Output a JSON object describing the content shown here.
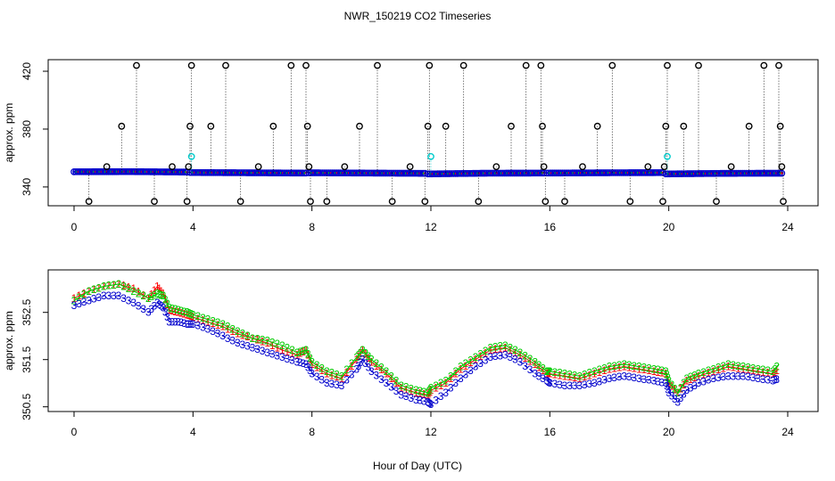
{
  "title": "NWR_150219  CO2 Timeseries",
  "xlabel": "Hour of Day (UTC)",
  "colors": {
    "series1": "#ff0000",
    "series2": "#00cc00",
    "series3": "#0000cc",
    "flagged": "#00cccc",
    "outlier": "#000000"
  },
  "chart_data": [
    {
      "type": "scatter",
      "name": "top-panel",
      "ylabel": "approx. ppm",
      "xlim": [
        0,
        24
      ],
      "ylim": [
        327,
        428
      ],
      "xticks": [
        "0",
        "4",
        "8",
        "12",
        "16",
        "20",
        "24"
      ],
      "yticks": [
        "340",
        "380",
        "420"
      ],
      "baseline_segments": [
        {
          "x": [
            0.0,
            2.0,
            3.8
          ],
          "y": [
            350.5,
            350.6,
            350.3
          ]
        },
        {
          "x": [
            3.9,
            6.0,
            7.8
          ],
          "y": [
            350.0,
            349.8,
            349.6
          ]
        },
        {
          "x": [
            7.9,
            10.0,
            11.8
          ],
          "y": [
            349.8,
            349.6,
            349.4
          ]
        },
        {
          "x": [
            11.9,
            14.0,
            15.8
          ],
          "y": [
            349.0,
            349.5,
            349.6
          ]
        },
        {
          "x": [
            15.9,
            18.0,
            19.8
          ],
          "y": [
            349.6,
            349.8,
            349.9
          ]
        },
        {
          "x": [
            19.9,
            22.0,
            23.8
          ],
          "y": [
            349.0,
            349.4,
            349.5
          ]
        }
      ],
      "outliers": [
        {
          "x": 0.5,
          "y": 330
        },
        {
          "x": 1.1,
          "y": 354
        },
        {
          "x": 1.6,
          "y": 382
        },
        {
          "x": 2.1,
          "y": 424
        },
        {
          "x": 2.7,
          "y": 330
        },
        {
          "x": 3.3,
          "y": 354
        },
        {
          "x": 3.8,
          "y": 330
        },
        {
          "x": 3.85,
          "y": 354
        },
        {
          "x": 3.9,
          "y": 382
        },
        {
          "x": 3.95,
          "y": 424
        },
        {
          "x": 4.6,
          "y": 382
        },
        {
          "x": 5.1,
          "y": 424
        },
        {
          "x": 5.6,
          "y": 330
        },
        {
          "x": 6.2,
          "y": 354
        },
        {
          "x": 6.7,
          "y": 382
        },
        {
          "x": 7.3,
          "y": 424
        },
        {
          "x": 7.8,
          "y": 424
        },
        {
          "x": 7.85,
          "y": 382
        },
        {
          "x": 7.9,
          "y": 354
        },
        {
          "x": 7.95,
          "y": 330
        },
        {
          "x": 8.5,
          "y": 330
        },
        {
          "x": 9.1,
          "y": 354
        },
        {
          "x": 9.6,
          "y": 382
        },
        {
          "x": 10.2,
          "y": 424
        },
        {
          "x": 10.7,
          "y": 330
        },
        {
          "x": 11.3,
          "y": 354
        },
        {
          "x": 11.8,
          "y": 330
        },
        {
          "x": 11.9,
          "y": 382
        },
        {
          "x": 11.95,
          "y": 424
        },
        {
          "x": 12.5,
          "y": 382
        },
        {
          "x": 13.1,
          "y": 424
        },
        {
          "x": 13.6,
          "y": 330
        },
        {
          "x": 14.2,
          "y": 354
        },
        {
          "x": 14.7,
          "y": 382
        },
        {
          "x": 15.2,
          "y": 424
        },
        {
          "x": 15.7,
          "y": 424
        },
        {
          "x": 15.75,
          "y": 382
        },
        {
          "x": 15.8,
          "y": 354
        },
        {
          "x": 15.85,
          "y": 330
        },
        {
          "x": 16.5,
          "y": 330
        },
        {
          "x": 17.1,
          "y": 354
        },
        {
          "x": 17.6,
          "y": 382
        },
        {
          "x": 18.1,
          "y": 424
        },
        {
          "x": 18.7,
          "y": 330
        },
        {
          "x": 19.3,
          "y": 354
        },
        {
          "x": 19.8,
          "y": 330
        },
        {
          "x": 19.85,
          "y": 354
        },
        {
          "x": 19.9,
          "y": 382
        },
        {
          "x": 19.95,
          "y": 424
        },
        {
          "x": 20.5,
          "y": 382
        },
        {
          "x": 21.0,
          "y": 424
        },
        {
          "x": 21.6,
          "y": 330
        },
        {
          "x": 22.1,
          "y": 354
        },
        {
          "x": 22.7,
          "y": 382
        },
        {
          "x": 23.2,
          "y": 424
        },
        {
          "x": 23.7,
          "y": 424
        },
        {
          "x": 23.75,
          "y": 382
        },
        {
          "x": 23.8,
          "y": 354
        },
        {
          "x": 23.85,
          "y": 330
        }
      ],
      "flagged": [
        {
          "x": 3.95,
          "y": 361
        },
        {
          "x": 12.0,
          "y": 361
        },
        {
          "x": 19.95,
          "y": 361
        }
      ]
    },
    {
      "type": "line",
      "name": "bottom-panel",
      "ylabel": "approx. ppm",
      "xlim": [
        0,
        24
      ],
      "ylim": [
        350.4,
        353.4
      ],
      "xticks": [
        "0",
        "4",
        "8",
        "12",
        "16",
        "20",
        "24"
      ],
      "yticks": [
        "350.5",
        "351.5",
        "352.5"
      ],
      "x": [
        0.0,
        0.5,
        1.0,
        1.5,
        2.0,
        2.5,
        2.8,
        3.0,
        3.2,
        3.5,
        3.8,
        4.0,
        4.5,
        5.0,
        5.5,
        6.0,
        6.5,
        7.0,
        7.5,
        7.8,
        8.0,
        8.5,
        9.0,
        9.5,
        9.7,
        10.0,
        10.5,
        11.0,
        11.5,
        11.9,
        12.0,
        12.5,
        13.0,
        13.5,
        14.0,
        14.5,
        15.0,
        15.5,
        15.9,
        16.0,
        16.5,
        17.0,
        17.5,
        18.0,
        18.5,
        19.0,
        19.5,
        19.9,
        20.0,
        20.3,
        20.6,
        21.0,
        21.5,
        22.0,
        22.5,
        23.0,
        23.5,
        23.7
      ],
      "series": [
        {
          "name": "1",
          "values": [
            352.8,
            352.95,
            353.05,
            353.1,
            353.0,
            352.8,
            353.05,
            352.9,
            352.55,
            352.5,
            352.45,
            352.4,
            352.3,
            352.2,
            352.05,
            351.95,
            351.85,
            351.7,
            351.6,
            351.7,
            351.4,
            351.2,
            351.1,
            351.5,
            351.7,
            351.45,
            351.2,
            350.9,
            350.8,
            350.75,
            350.85,
            351.0,
            351.3,
            351.5,
            351.7,
            351.75,
            351.6,
            351.4,
            351.2,
            351.2,
            351.15,
            351.1,
            351.2,
            351.3,
            351.35,
            351.3,
            351.25,
            351.2,
            351.0,
            350.8,
            351.05,
            351.15,
            351.25,
            351.35,
            351.3,
            351.25,
            351.2,
            351.3
          ]
        },
        {
          "name": "2",
          "values": [
            352.75,
            352.95,
            353.05,
            353.1,
            352.95,
            352.8,
            352.9,
            352.85,
            352.6,
            352.55,
            352.5,
            352.45,
            352.35,
            352.25,
            352.1,
            351.95,
            351.9,
            351.8,
            351.65,
            351.7,
            351.45,
            351.25,
            351.15,
            351.55,
            351.7,
            351.5,
            351.25,
            350.95,
            350.85,
            350.8,
            350.9,
            351.05,
            351.35,
            351.55,
            351.75,
            351.8,
            351.65,
            351.45,
            351.25,
            351.25,
            351.2,
            351.15,
            351.25,
            351.35,
            351.4,
            351.35,
            351.3,
            351.25,
            351.05,
            350.8,
            351.1,
            351.2,
            351.3,
            351.4,
            351.35,
            351.3,
            351.25,
            351.4
          ]
        },
        {
          "name": "3",
          "values": [
            352.65,
            352.75,
            352.85,
            352.85,
            352.7,
            352.5,
            352.7,
            352.6,
            352.3,
            352.3,
            352.25,
            352.25,
            352.15,
            352.0,
            351.85,
            351.75,
            351.65,
            351.55,
            351.45,
            351.4,
            351.2,
            351.0,
            350.95,
            351.3,
            351.5,
            351.25,
            351.0,
            350.75,
            350.65,
            350.6,
            350.55,
            350.8,
            351.1,
            351.35,
            351.55,
            351.6,
            351.45,
            351.2,
            351.05,
            351.0,
            350.95,
            350.95,
            351.0,
            351.1,
            351.15,
            351.1,
            351.05,
            351.0,
            350.8,
            350.6,
            350.85,
            351.0,
            351.1,
            351.15,
            351.15,
            351.1,
            351.05,
            351.1
          ]
        }
      ]
    }
  ]
}
